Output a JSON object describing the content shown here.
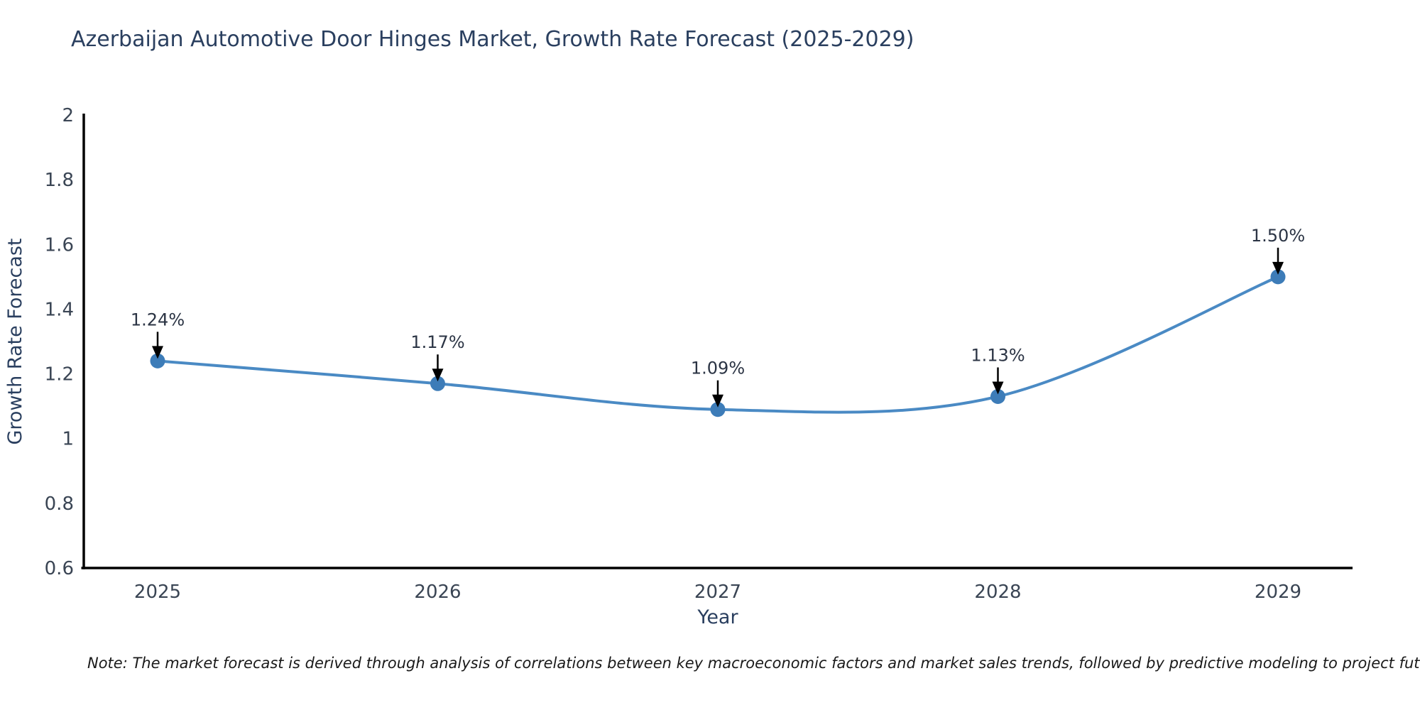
{
  "title": "Azerbaijan Automotive Door Hinges Market, Growth Rate Forecast (2025-2029)",
  "note": "Note: The market forecast is derived through analysis of correlations between key macroeconomic factors and market sales trends, followed by predictive modeling to project future sales",
  "colors": {
    "line": "#4a8ac4",
    "marker": "#3d7cb8",
    "axis": "#000000",
    "annotation_arrow": "#000000",
    "title_text": "#2a3f5f",
    "tick_text": "#3a4554"
  },
  "chart_data": {
    "type": "line",
    "curve": "spline",
    "title": "Azerbaijan Automotive Door Hinges Market, Growth Rate Forecast (2025-2029)",
    "xlabel": "Year",
    "ylabel": "Growth Rate Forecast",
    "x": [
      2025,
      2026,
      2027,
      2028,
      2029
    ],
    "values": [
      1.24,
      1.17,
      1.09,
      1.13,
      1.5
    ],
    "point_labels": [
      "1.24%",
      "1.17%",
      "1.09%",
      "1.13%",
      "1.50%"
    ],
    "ylim": [
      0.6,
      2
    ],
    "yticks": [
      0.6,
      0.8,
      1,
      1.2,
      1.4,
      1.6,
      1.8,
      2
    ],
    "grid": false,
    "legend_position": "none",
    "annotation_style": "down-arrow pointing to each marker"
  }
}
